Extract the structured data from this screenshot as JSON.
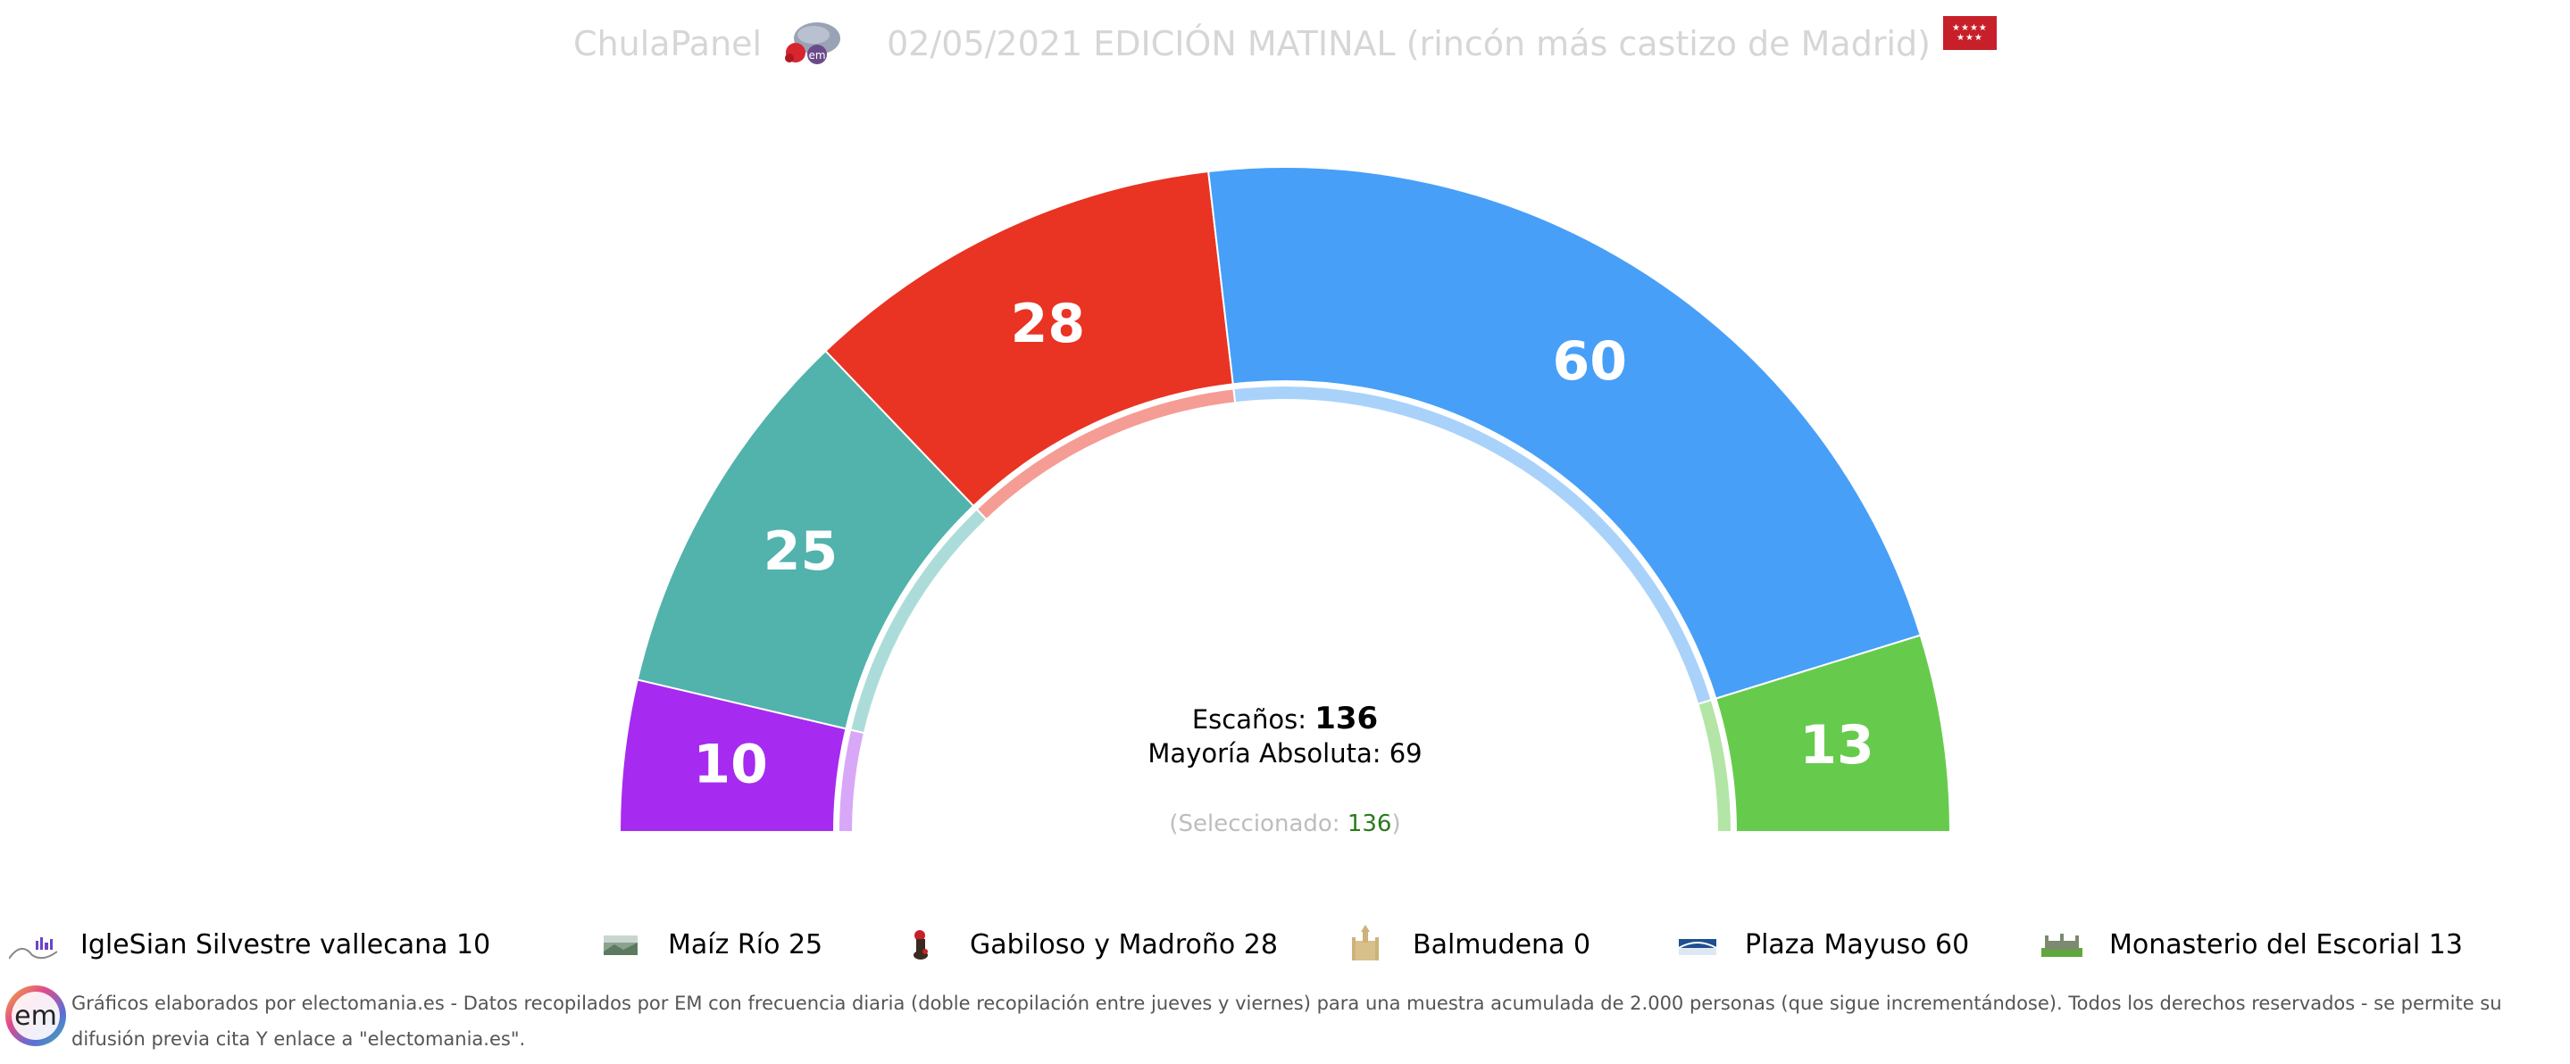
{
  "header": {
    "brand": "ChulaPanel",
    "title": "02/05/2021 EDICIÓN MATINAL (rincón más castizo de Madrid)",
    "logo_icon": "brain-em-logo-icon",
    "flag_icon": "madrid-flag-icon",
    "flag_color": "#c8202a"
  },
  "chart_data": {
    "type": "parliament-semicircle",
    "total_seats": 136,
    "majority": 69,
    "parties": [
      {
        "name": "IgleSian Silvestre vallecana",
        "seats": 10,
        "color": "#a62af0",
        "inner_color": "#d8a7f7"
      },
      {
        "name": "Maíz Río",
        "seats": 25,
        "color": "#52b2ac",
        "inner_color": "#acdcd9"
      },
      {
        "name": "Gabiloso y Madroño",
        "seats": 28,
        "color": "#e93323",
        "inner_color": "#f59c95"
      },
      {
        "name": "Balmudena",
        "seats": 0,
        "color": "#d8c08a",
        "inner_color": "#ece0c5"
      },
      {
        "name": "Plaza Mayuso",
        "seats": 60,
        "color": "#479ff8",
        "inner_color": "#a9d2fb"
      },
      {
        "name": "Monasterio del Escorial",
        "seats": 13,
        "color": "#66cb4c",
        "inner_color": "#b3e5a6"
      }
    ]
  },
  "center": {
    "seats_label": "Escaños:",
    "seats_value": "136",
    "majority_label": "Mayoría Absoluta: 69",
    "selected_open": "(Seleccionado: ",
    "selected_value": "136",
    "selected_close": ")"
  },
  "legend": [
    {
      "label": "IgleSian Silvestre vallecana 10",
      "icon": "vallecas-skyline-icon"
    },
    {
      "label": "Maíz Río 25",
      "icon": "landscape-photo-icon"
    },
    {
      "label": "Gabiloso y Madroño 28",
      "icon": "bear-strawberry-tree-icon"
    },
    {
      "label": "Balmudena 0",
      "icon": "cathedral-icon"
    },
    {
      "label": "Plaza Mayuso 60",
      "icon": "plaza-mayor-icon"
    },
    {
      "label": "Monasterio del Escorial 13",
      "icon": "monastery-icon"
    }
  ],
  "footer": {
    "logo_icon": "em-logo-icon",
    "text": "Gráficos elaborados por electomania.es - Datos recopilados por EM con frecuencia diaria (doble recopilación entre jueves y viernes) para una muestra acumulada de 2.000 personas (que sigue incrementándose). Todos los derechos reservados - se permite su difusión previa cita Y enlace a \"electomania.es\"."
  }
}
